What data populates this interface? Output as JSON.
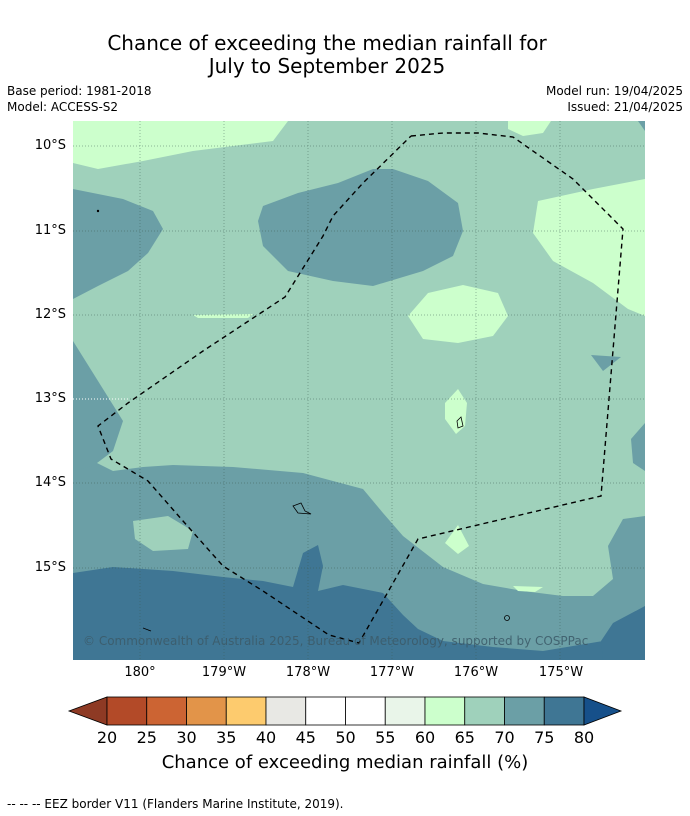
{
  "title": {
    "line1": "Chance of exceeding the median rainfall for",
    "line2": "July to September 2025"
  },
  "meta": {
    "base_period": "Base period: 1981-2018",
    "model": "Model: ACCESS-S2",
    "model_run": "Model run: 19/04/2025",
    "issued": "Issued: 21/04/2025"
  },
  "map": {
    "latitude_labels": [
      "10°S",
      "11°S",
      "12°S",
      "13°S",
      "14°S",
      "15°S"
    ],
    "longitude_labels": [
      "180°",
      "179°W",
      "178°W",
      "177°W",
      "176°W",
      "175°W"
    ],
    "copyright": "© Commonwealth of Australia 2025, Bureau of Meteorology, supported by COSPPac"
  },
  "colorbar": {
    "ticks": [
      "20",
      "25",
      "30",
      "35",
      "40",
      "45",
      "50",
      "55",
      "60",
      "65",
      "70",
      "75",
      "80"
    ],
    "colors": [
      "#8e3a24",
      "#b34a28",
      "#cc6433",
      "#e29449",
      "#fdcb6e",
      "#e8e8e4",
      "#ffffff",
      "#ffffff",
      "#e9f5e9",
      "#ccffcc",
      "#9fd1bb",
      "#6b9fa6",
      "#3f7694",
      "#16508a"
    ],
    "title": "Chance of exceeding median rainfall (%)"
  },
  "footer": "--  --  -- EEZ border V11 (Flanders Marine Institute, 2019).",
  "legend_colors": {
    "p60_65": "#ccffcc",
    "p65_70": "#9fd1bb",
    "p70_75": "#6b9fa6",
    "p75_80": "#3f7694",
    "p80_plus": "#16508a"
  }
}
